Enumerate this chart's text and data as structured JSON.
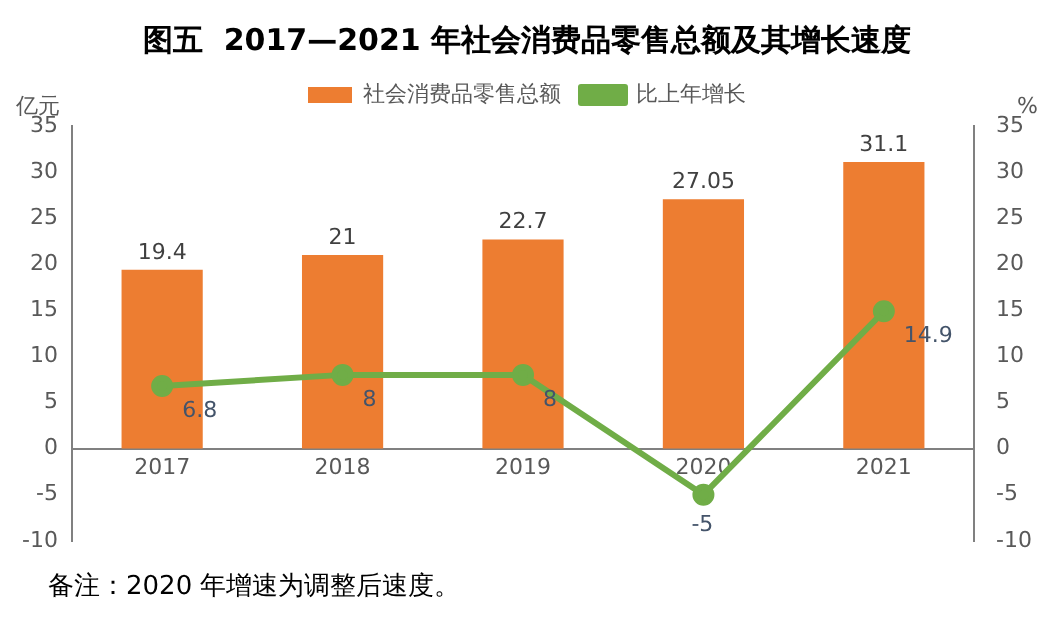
{
  "chart_data": {
    "type": "bar",
    "title": "图五  2017—2021 年社会消费品零售总额及其增长速度",
    "ylabel": "亿元",
    "y2label": "%",
    "categories": [
      "2017",
      "2018",
      "2019",
      "2020",
      "2021"
    ],
    "series": [
      {
        "name": "社会消费品零售总额",
        "color": "#ed7d31",
        "values": [
          19.4,
          21,
          22.7,
          27.05,
          31.1
        ]
      },
      {
        "name": "比上年增长",
        "type": "line",
        "color": "#70ad47",
        "axis": "y2",
        "marker": "circle",
        "values": [
          6.8,
          8,
          8,
          -5,
          14.9
        ]
      }
    ],
    "ylim": [
      -10,
      35
    ],
    "yticks": [
      -10,
      -5,
      0,
      5,
      10,
      15,
      20,
      25,
      30,
      35
    ],
    "y2lim": [
      -10,
      35
    ],
    "y2ticks": [
      -10,
      -5,
      0,
      5,
      10,
      15,
      20,
      25,
      30,
      35
    ],
    "grid": false,
    "legend": "top",
    "data_labels": true,
    "annotations": [
      "备注：2020 年增速为调整后速度。"
    ]
  }
}
